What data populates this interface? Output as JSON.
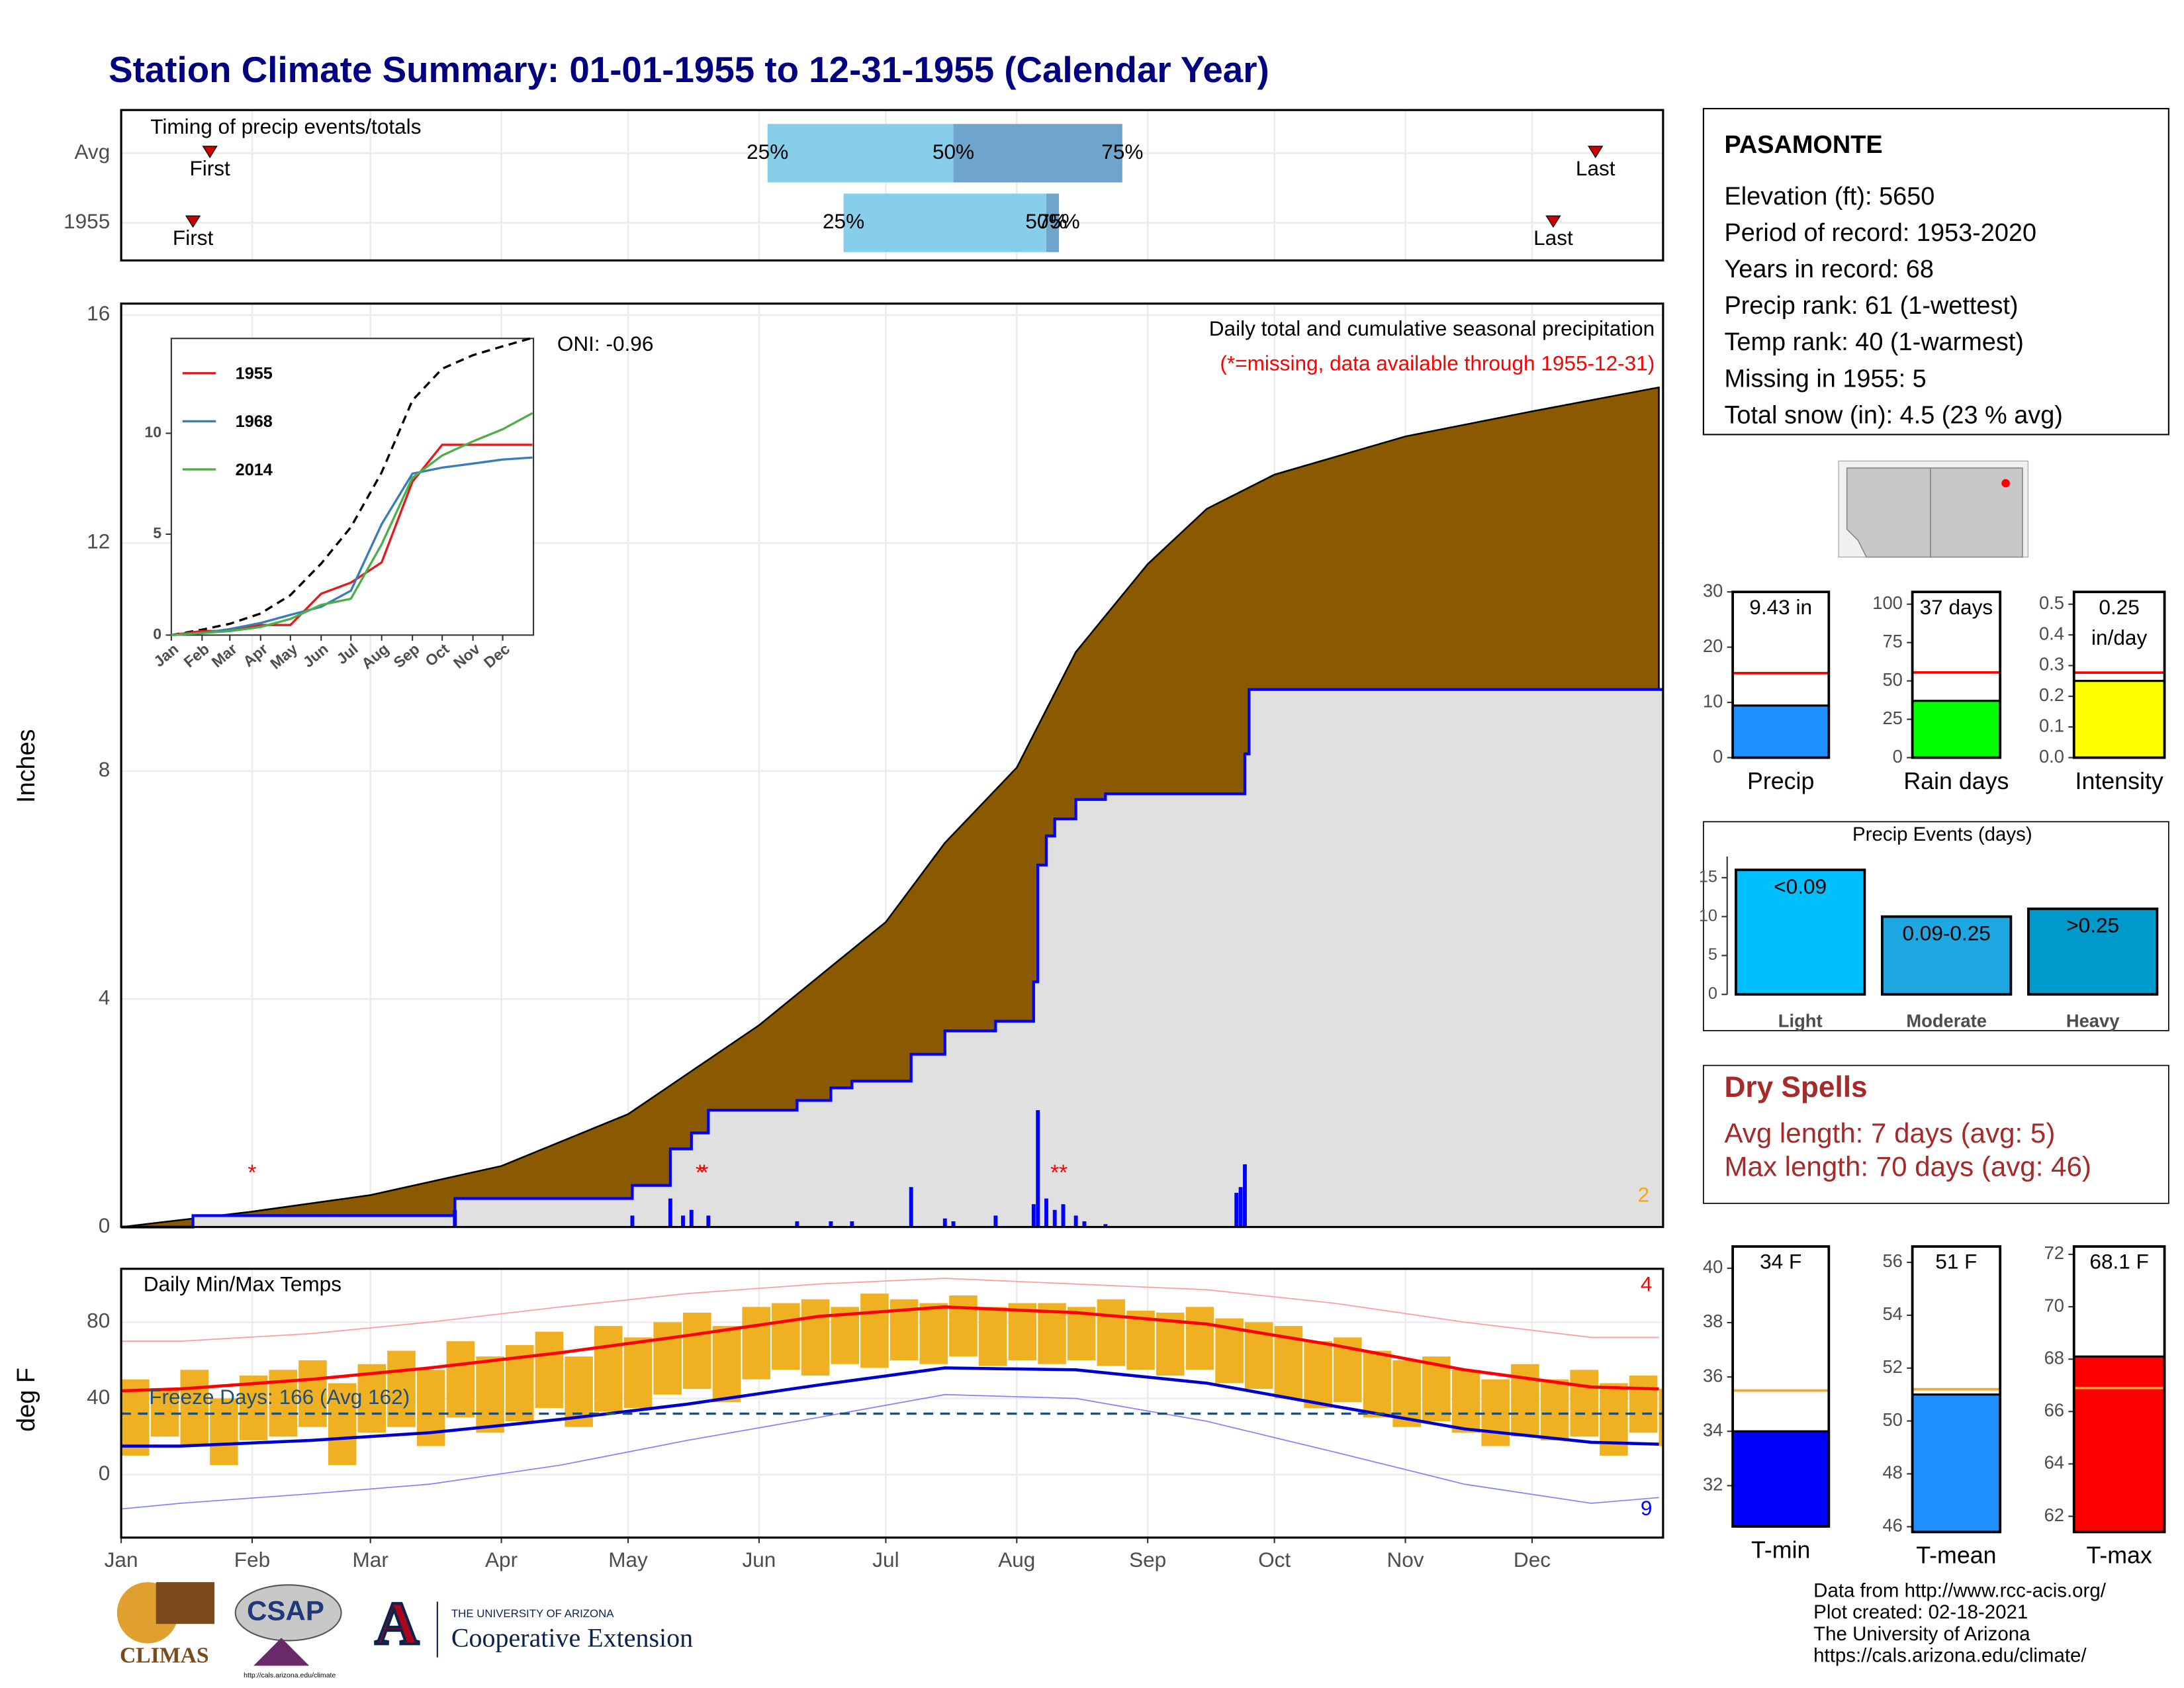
{
  "title": "Station Climate Summary: 01-01-1955 to 12-31-1955 (Calendar Year)",
  "chart_data": [
    {
      "type": "timing",
      "title": "Timing of precip events/totals",
      "categories": [
        "Avg",
        "1955"
      ],
      "first": [
        22,
        18
      ],
      "last": [
        350,
        340
      ],
      "marker_labels": [
        "First",
        "Last"
      ],
      "marker_color": "#cc0000",
      "quantile_labels": [
        "25%",
        "50%",
        "75%"
      ],
      "quantiles": [
        [
          154,
          198,
          238
        ],
        [
          172,
          220,
          223
        ]
      ],
      "colors": [
        "#87ceeb",
        "#6fa5cc"
      ],
      "xlim": [
        1,
        366
      ],
      "grid": true
    },
    {
      "type": "cumulative",
      "title": "Daily total and cumulative seasonal precipitation",
      "subtitle": "(*=missing, data available through 1955-12-31)",
      "annotation": "ONI: -0.96",
      "count": 2,
      "count_color": "#ffa500",
      "ylabel": "Inches",
      "xlim": [
        1,
        366
      ],
      "ylim": [
        0,
        16.2
      ],
      "yticks": [
        0,
        4,
        8,
        12,
        16
      ],
      "grid": true,
      "average": {
        "x": [
          1,
          32,
          60,
          91,
          121,
          152,
          182,
          196,
          213,
          227,
          244,
          258,
          274,
          305,
          335,
          365
        ],
        "values": [
          0,
          0.27,
          0.56,
          1.07,
          1.98,
          3.54,
          5.35,
          6.74,
          8.06,
          10.09,
          11.63,
          12.6,
          13.2,
          13.87,
          14.31,
          14.73
        ],
        "color": "#8b5a00"
      },
      "observed": {
        "x": [
          1,
          18,
          80,
          122,
          131,
          136,
          140,
          161,
          169,
          174,
          188,
          196,
          208,
          217,
          218,
          220,
          222,
          227,
          234,
          267,
          268,
          365
        ],
        "values": [
          0,
          0.2,
          0.5,
          0.73,
          1.37,
          1.65,
          2.05,
          2.22,
          2.44,
          2.56,
          3.03,
          3.44,
          3.61,
          4.3,
          6.35,
          6.86,
          7.16,
          7.5,
          7.6,
          8.3,
          9.43,
          9.43
        ],
        "color": "#0000ff",
        "fill": "#e0e0e0"
      },
      "daily": {
        "x": [
          80,
          122,
          131,
          134,
          136,
          140,
          161,
          169,
          174,
          188,
          196,
          198,
          208,
          217,
          218,
          220,
          222,
          224,
          227,
          229,
          234,
          265,
          266,
          267
        ],
        "values": [
          0.3,
          0.2,
          0.5,
          0.2,
          0.3,
          0.2,
          0.1,
          0.1,
          0.1,
          0.7,
          0.15,
          0.1,
          0.2,
          0.4,
          2.05,
          0.5,
          0.3,
          0.4,
          0.2,
          0.1,
          0.05,
          0.6,
          0.7,
          1.1
        ],
        "color": "#0000ff"
      },
      "missing": {
        "x": [
          32,
          138,
          139,
          222,
          224
        ],
        "values": [
          1,
          1,
          1,
          1,
          1
        ],
        "symbol": "*",
        "color": "#ff0000"
      }
    },
    {
      "type": "temperature",
      "title": "Daily Min/Max Temps",
      "annotation": "Freeze Days: 166 (Avg 162)",
      "annotation_color": "#1f4e79",
      "ylabel": "deg F",
      "xlim": [
        1,
        366
      ],
      "ylim": [
        -33,
        108
      ],
      "yticks": [
        0,
        40,
        80
      ],
      "grid": true,
      "freeze_line": 32,
      "record_high_count": 4,
      "record_low_count": 9,
      "xticks": [
        {
          "value": 1,
          "label": "Jan"
        },
        {
          "value": 32,
          "label": "Feb"
        },
        {
          "value": 60,
          "label": "Mar"
        },
        {
          "value": 91,
          "label": "Apr"
        },
        {
          "value": 121,
          "label": "May"
        },
        {
          "value": 152,
          "label": "Jun"
        },
        {
          "value": 182,
          "label": "Jul"
        },
        {
          "value": 213,
          "label": "Aug"
        },
        {
          "value": 244,
          "label": "Sep"
        },
        {
          "value": 274,
          "label": "Oct"
        },
        {
          "value": 305,
          "label": "Nov"
        },
        {
          "value": 335,
          "label": "Dec"
        }
      ],
      "daily": {
        "x": [
          1,
          8,
          15,
          22,
          29,
          36,
          43,
          50,
          57,
          64,
          71,
          78,
          85,
          92,
          99,
          106,
          113,
          120,
          127,
          134,
          141,
          148,
          155,
          162,
          169,
          176,
          183,
          190,
          197,
          204,
          211,
          218,
          225,
          232,
          239,
          246,
          253,
          260,
          267,
          274,
          281,
          288,
          295,
          302,
          309,
          316,
          323,
          330,
          337,
          344,
          351,
          358,
          365
        ],
        "high": [
          50,
          45,
          55,
          40,
          52,
          55,
          60,
          48,
          58,
          65,
          55,
          70,
          62,
          68,
          75,
          62,
          78,
          72,
          80,
          85,
          78,
          88,
          90,
          92,
          88,
          95,
          92,
          90,
          94,
          88,
          90,
          90,
          88,
          92,
          86,
          85,
          88,
          82,
          80,
          78,
          70,
          72,
          65,
          60,
          62,
          55,
          50,
          58,
          50,
          55,
          48,
          52,
          45
        ],
        "low": [
          10,
          20,
          15,
          5,
          18,
          20,
          25,
          5,
          22,
          25,
          15,
          30,
          22,
          28,
          35,
          25,
          33,
          35,
          42,
          45,
          38,
          50,
          55,
          52,
          58,
          56,
          60,
          58,
          62,
          57,
          60,
          58,
          60,
          57,
          55,
          52,
          55,
          48,
          45,
          40,
          35,
          38,
          30,
          25,
          28,
          22,
          15,
          20,
          18,
          20,
          10,
          22,
          15
        ],
        "color": "#efb122"
      },
      "normals": {
        "x": [
          1,
          15,
          46,
          74,
          105,
          135,
          166,
          196,
          227,
          258,
          288,
          319,
          349,
          365
        ],
        "max": [
          44,
          45,
          50,
          56,
          64,
          73,
          83,
          88,
          85,
          79,
          68,
          55,
          46,
          45
        ],
        "min": [
          15,
          15,
          18,
          22,
          29,
          37,
          47,
          56,
          55,
          48,
          36,
          24,
          17,
          16
        ],
        "record_max": [
          70,
          70,
          74,
          80,
          88,
          95,
          100,
          103,
          100,
          97,
          90,
          80,
          72,
          72
        ],
        "record_min": [
          -18,
          -15,
          -10,
          -5,
          5,
          18,
          30,
          42,
          40,
          28,
          12,
          -5,
          -15,
          -12
        ],
        "colors": [
          "#ff0000",
          "#0000cc",
          "#ff9a9a",
          "#8080ff"
        ]
      }
    },
    {
      "type": "line",
      "x": [
        1,
        32,
        60,
        91,
        121,
        152,
        182,
        213,
        244,
        274,
        305,
        335,
        365
      ],
      "xlim": [
        1,
        366
      ],
      "ylim": [
        0,
        14.7
      ],
      "yticks": [
        0,
        5,
        10
      ],
      "xticks": [
        {
          "value": 1,
          "label": "Jan"
        },
        {
          "value": 32,
          "label": "Feb"
        },
        {
          "value": 60,
          "label": "Mar"
        },
        {
          "value": 91,
          "label": "Apr"
        },
        {
          "value": 121,
          "label": "May"
        },
        {
          "value": 152,
          "label": "Jun"
        },
        {
          "value": 182,
          "label": "Jul"
        },
        {
          "value": 213,
          "label": "Aug"
        },
        {
          "value": 244,
          "label": "Sep"
        },
        {
          "value": 274,
          "label": "Oct"
        },
        {
          "value": 305,
          "label": "Nov"
        },
        {
          "value": 335,
          "label": "Dec"
        }
      ],
      "series": [
        {
          "name": "1955",
          "color": "#e41a1c",
          "values": [
            0,
            0.2,
            0.2,
            0.5,
            0.5,
            2.05,
            2.6,
            3.6,
            7.6,
            9.43,
            9.43,
            9.43,
            9.43
          ]
        },
        {
          "name": "1968",
          "color": "#377eb8",
          "values": [
            0,
            0.1,
            0.3,
            0.6,
            1.0,
            1.4,
            2.2,
            5.5,
            8.0,
            8.3,
            8.5,
            8.7,
            8.8
          ]
        },
        {
          "name": "2014",
          "color": "#4daf4a",
          "values": [
            0,
            0.1,
            0.2,
            0.4,
            0.8,
            1.5,
            1.8,
            4.5,
            7.8,
            8.9,
            9.6,
            10.2,
            11.0
          ]
        }
      ],
      "average": {
        "color": "#000000",
        "values": [
          0,
          0.27,
          0.56,
          1.07,
          1.98,
          3.54,
          5.35,
          8.06,
          11.63,
          13.2,
          13.87,
          14.31,
          14.73
        ]
      }
    },
    {
      "type": "gauge",
      "xlabel": "Precip",
      "value": 9.43,
      "value_label": "9.43 in",
      "average": 15.3,
      "color": "#1e90ff",
      "average_color": "#ff0000",
      "ylim": [
        0,
        30
      ],
      "yticks": [
        0,
        10,
        20,
        30
      ]
    },
    {
      "type": "gauge",
      "xlabel": "Rain days",
      "value": 37,
      "value_label": "37 days",
      "average": 55.5,
      "color": "#00ff00",
      "average_color": "#ff0000",
      "ylim": [
        0,
        108
      ],
      "yticks": [
        0,
        25,
        50,
        75,
        100
      ]
    },
    {
      "type": "gauge",
      "xlabel": "Intensity",
      "value": 0.25,
      "value_label": "0.25 in/day",
      "average": 0.277,
      "color": "#ffff00",
      "average_color": "#ff0000",
      "ylim": [
        0,
        0.54
      ],
      "yticks": [
        {
          "value": 0,
          "label": "0.0"
        },
        0.1,
        0.2,
        0.3,
        0.4,
        0.5
      ]
    },
    {
      "type": "bar",
      "title": "Precip Events (days)",
      "categories": [
        "Light",
        "Moderate",
        "Heavy"
      ],
      "values": [
        16,
        10,
        11
      ],
      "bar_labels": [
        "<0.09",
        "0.09-0.25",
        ">0.25"
      ],
      "colors": [
        "#00bfff",
        "#1ea7e0",
        "#0099cc"
      ],
      "ylim": [
        0,
        17
      ],
      "yticks": [
        0,
        5,
        10,
        15
      ]
    },
    {
      "type": "gauge",
      "xlabel": "T-min",
      "value": 34,
      "value_label": "34 F",
      "average": 35.5,
      "color": "#0000ff",
      "average_color": "#f0a830",
      "ylim": [
        30.5,
        40.8
      ],
      "yticks": [
        32,
        34,
        36,
        38,
        40
      ]
    },
    {
      "type": "gauge",
      "xlabel": "T-mean",
      "value": 51,
      "value_label": "51 F",
      "average": 51.2,
      "color": "#1e90ff",
      "average_color": "#f0a830",
      "ylim": [
        45.8,
        56.6
      ],
      "yticks": [
        46,
        48,
        50,
        52,
        54,
        56
      ]
    },
    {
      "type": "gauge",
      "xlabel": "T-max",
      "value": 68.1,
      "value_label": "68.1 F",
      "average": 66.9,
      "color": "#ff0000",
      "average_color": "#f0a830",
      "ylim": [
        61.4,
        72.3
      ],
      "yticks": [
        62,
        64,
        66,
        68,
        70,
        72
      ]
    }
  ],
  "station": {
    "name": "PASAMONTE",
    "lines": [
      "Elevation (ft): 5650",
      "Period of record: 1953-2020",
      "Years in record: 68",
      "Precip rank: 61 (1-wettest)",
      "Temp rank: 40 (1-warmest)",
      "Missing in 1955: 5",
      "Total snow (in): 4.5 (23 % avg)"
    ]
  },
  "dry_spells": {
    "title": "Dry Spells",
    "lines": [
      "Avg length: 7 days (avg: 5)",
      "Max length: 70 days (avg: 46)"
    ]
  },
  "logos": {
    "climas": "CLIMAS",
    "csap": "CSAP",
    "csap_url": "http://cals.arizona.edu/climate",
    "ua_mark": "A",
    "ua_name": "THE UNIVERSITY OF ARIZONA",
    "extension": "Cooperative Extension"
  },
  "footer": [
    "Data from http://www.rcc-acis.org/",
    "Plot created: 02-18-2021",
    "The University of Arizona",
    "https://cals.arizona.edu/climate/"
  ]
}
